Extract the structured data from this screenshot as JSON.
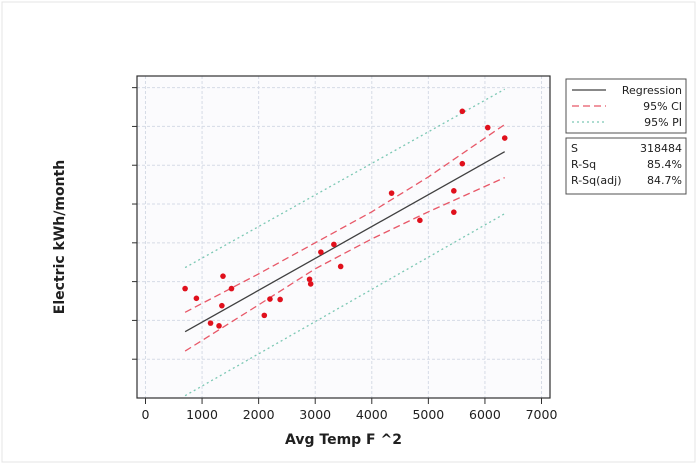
{
  "chart_data": {
    "type": "scatter",
    "xlabel": "Avg Temp F ^2",
    "ylabel": "Electric kWh/month",
    "xlim": [
      -150,
      7150
    ],
    "x_ticks": [
      0,
      1000,
      2000,
      3000,
      4000,
      5000,
      6000,
      7000
    ],
    "grid": true,
    "legend_position": "top-right",
    "points": [
      {
        "x": 700,
        "y": 2.82
      },
      {
        "x": 900,
        "y": 2.57
      },
      {
        "x": 1150,
        "y": 1.93
      },
      {
        "x": 1300,
        "y": 1.86
      },
      {
        "x": 1350,
        "y": 2.38
      },
      {
        "x": 1370,
        "y": 3.14
      },
      {
        "x": 1520,
        "y": 2.82
      },
      {
        "x": 2100,
        "y": 2.13
      },
      {
        "x": 2200,
        "y": 2.55
      },
      {
        "x": 2380,
        "y": 2.54
      },
      {
        "x": 2900,
        "y": 3.06
      },
      {
        "x": 2920,
        "y": 2.94
      },
      {
        "x": 3100,
        "y": 3.76
      },
      {
        "x": 3330,
        "y": 3.96
      },
      {
        "x": 3450,
        "y": 3.39
      },
      {
        "x": 4350,
        "y": 5.28
      },
      {
        "x": 4850,
        "y": 4.58
      },
      {
        "x": 5450,
        "y": 5.34
      },
      {
        "x": 5450,
        "y": 4.79
      },
      {
        "x": 5600,
        "y": 6.04
      },
      {
        "x": 5600,
        "y": 7.39
      },
      {
        "x": 6050,
        "y": 6.97
      },
      {
        "x": 6350,
        "y": 6.7
      }
    ],
    "regression": {
      "x": [
        700,
        6350
      ],
      "y": [
        1.71,
        6.35
      ]
    },
    "ci_band": {
      "x": [
        700,
        2000,
        3000,
        4000,
        5000,
        6350
      ],
      "lower": [
        1.21,
        2.4,
        3.33,
        4.1,
        4.8,
        5.68
      ],
      "upper": [
        2.21,
        3.2,
        4.0,
        4.8,
        5.7,
        7.05
      ]
    },
    "pi_band": {
      "x": [
        700,
        6350
      ],
      "lower": [
        0.06,
        4.75
      ],
      "upper": [
        3.36,
        7.96
      ]
    },
    "legend": [
      {
        "label": "Regression",
        "color": "#404040",
        "style": "solid"
      },
      {
        "label": "95% CI",
        "color": "#e85868",
        "style": "dashed"
      },
      {
        "label": "95% PI",
        "color": "#7cc8b4",
        "style": "dotted"
      }
    ],
    "stats": [
      {
        "label": "S",
        "value": "318484"
      },
      {
        "label": "R-Sq",
        "value": "85.4%"
      },
      {
        "label": "R-Sq(adj)",
        "value": "84.7%"
      }
    ],
    "colors": {
      "points": "#e0101c",
      "regression": "#404040",
      "ci": "#e85868",
      "pi": "#7cc8b4",
      "grid": "#d6dbe6"
    }
  }
}
